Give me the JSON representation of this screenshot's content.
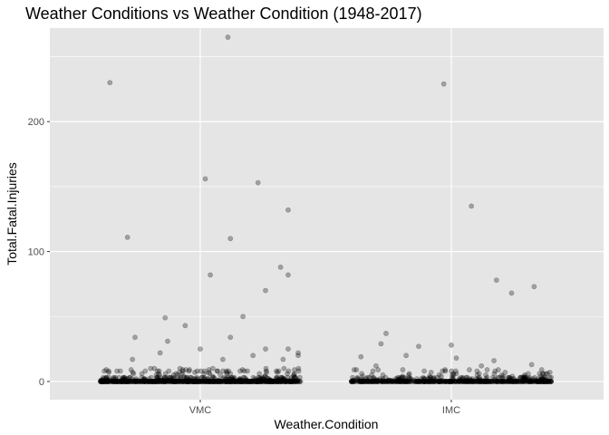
{
  "chart_data": {
    "type": "scatter",
    "title": "Weather Conditions vs Weather Condition (1948-2017)",
    "xlabel": "Weather.Condition",
    "ylabel": "Total.Fatal.Injuries",
    "categories": [
      "VMC",
      "IMC"
    ],
    "x_jitter_range": [
      -0.4,
      0.4
    ],
    "ylim": [
      -14,
      272
    ],
    "yticks": [
      0,
      100,
      200
    ],
    "grid": true,
    "point_color": "#000000",
    "point_opacity": 0.3,
    "panel_background": "#e5e5e5",
    "grid_color": "#ffffff",
    "outliers": [
      {
        "category": "VMC",
        "offset": -0.36,
        "value": 230
      },
      {
        "category": "VMC",
        "offset": -0.29,
        "value": 111
      },
      {
        "category": "VMC",
        "offset": 0.11,
        "value": 265
      },
      {
        "category": "VMC",
        "offset": 0.02,
        "value": 156
      },
      {
        "category": "VMC",
        "offset": 0.12,
        "value": 110
      },
      {
        "category": "VMC",
        "offset": 0.23,
        "value": 153
      },
      {
        "category": "VMC",
        "offset": 0.35,
        "value": 132
      },
      {
        "category": "VMC",
        "offset": 0.04,
        "value": 82
      },
      {
        "category": "VMC",
        "offset": 0.32,
        "value": 88
      },
      {
        "category": "VMC",
        "offset": 0.35,
        "value": 82
      },
      {
        "category": "VMC",
        "offset": 0.26,
        "value": 70
      },
      {
        "category": "VMC",
        "offset": 0.17,
        "value": 50
      },
      {
        "category": "VMC",
        "offset": -0.14,
        "value": 49
      },
      {
        "category": "VMC",
        "offset": -0.06,
        "value": 43
      },
      {
        "category": "VMC",
        "offset": -0.26,
        "value": 34
      },
      {
        "category": "VMC",
        "offset": 0.12,
        "value": 34
      },
      {
        "category": "VMC",
        "offset": -0.13,
        "value": 31
      },
      {
        "category": "VMC",
        "offset": 0.0,
        "value": 25
      },
      {
        "category": "VMC",
        "offset": 0.26,
        "value": 25
      },
      {
        "category": "VMC",
        "offset": 0.35,
        "value": 25
      },
      {
        "category": "VMC",
        "offset": -0.16,
        "value": 22
      },
      {
        "category": "VMC",
        "offset": 0.39,
        "value": 22
      },
      {
        "category": "VMC",
        "offset": 0.21,
        "value": 20
      },
      {
        "category": "VMC",
        "offset": 0.39,
        "value": 20
      },
      {
        "category": "VMC",
        "offset": -0.27,
        "value": 17
      },
      {
        "category": "VMC",
        "offset": 0.09,
        "value": 17
      },
      {
        "category": "VMC",
        "offset": 0.33,
        "value": 17
      },
      {
        "category": "IMC",
        "offset": -0.03,
        "value": 229
      },
      {
        "category": "IMC",
        "offset": 0.08,
        "value": 135
      },
      {
        "category": "IMC",
        "offset": 0.18,
        "value": 78
      },
      {
        "category": "IMC",
        "offset": 0.33,
        "value": 73
      },
      {
        "category": "IMC",
        "offset": 0.24,
        "value": 68
      },
      {
        "category": "IMC",
        "offset": -0.26,
        "value": 37
      },
      {
        "category": "IMC",
        "offset": -0.28,
        "value": 29
      },
      {
        "category": "IMC",
        "offset": -0.13,
        "value": 27
      },
      {
        "category": "IMC",
        "offset": 0.0,
        "value": 28
      },
      {
        "category": "IMC",
        "offset": -0.36,
        "value": 19
      },
      {
        "category": "IMC",
        "offset": 0.02,
        "value": 18
      },
      {
        "category": "IMC",
        "offset": -0.18,
        "value": 20
      },
      {
        "category": "IMC",
        "offset": 0.17,
        "value": 16
      },
      {
        "category": "IMC",
        "offset": -0.3,
        "value": 12
      },
      {
        "category": "IMC",
        "offset": 0.32,
        "value": 13
      },
      {
        "category": "IMC",
        "offset": 0.12,
        "value": 12
      }
    ],
    "dense_band": [
      {
        "category": "VMC",
        "count": 900,
        "max_value": 10
      },
      {
        "category": "IMC",
        "count": 650,
        "max_value": 9
      }
    ]
  }
}
